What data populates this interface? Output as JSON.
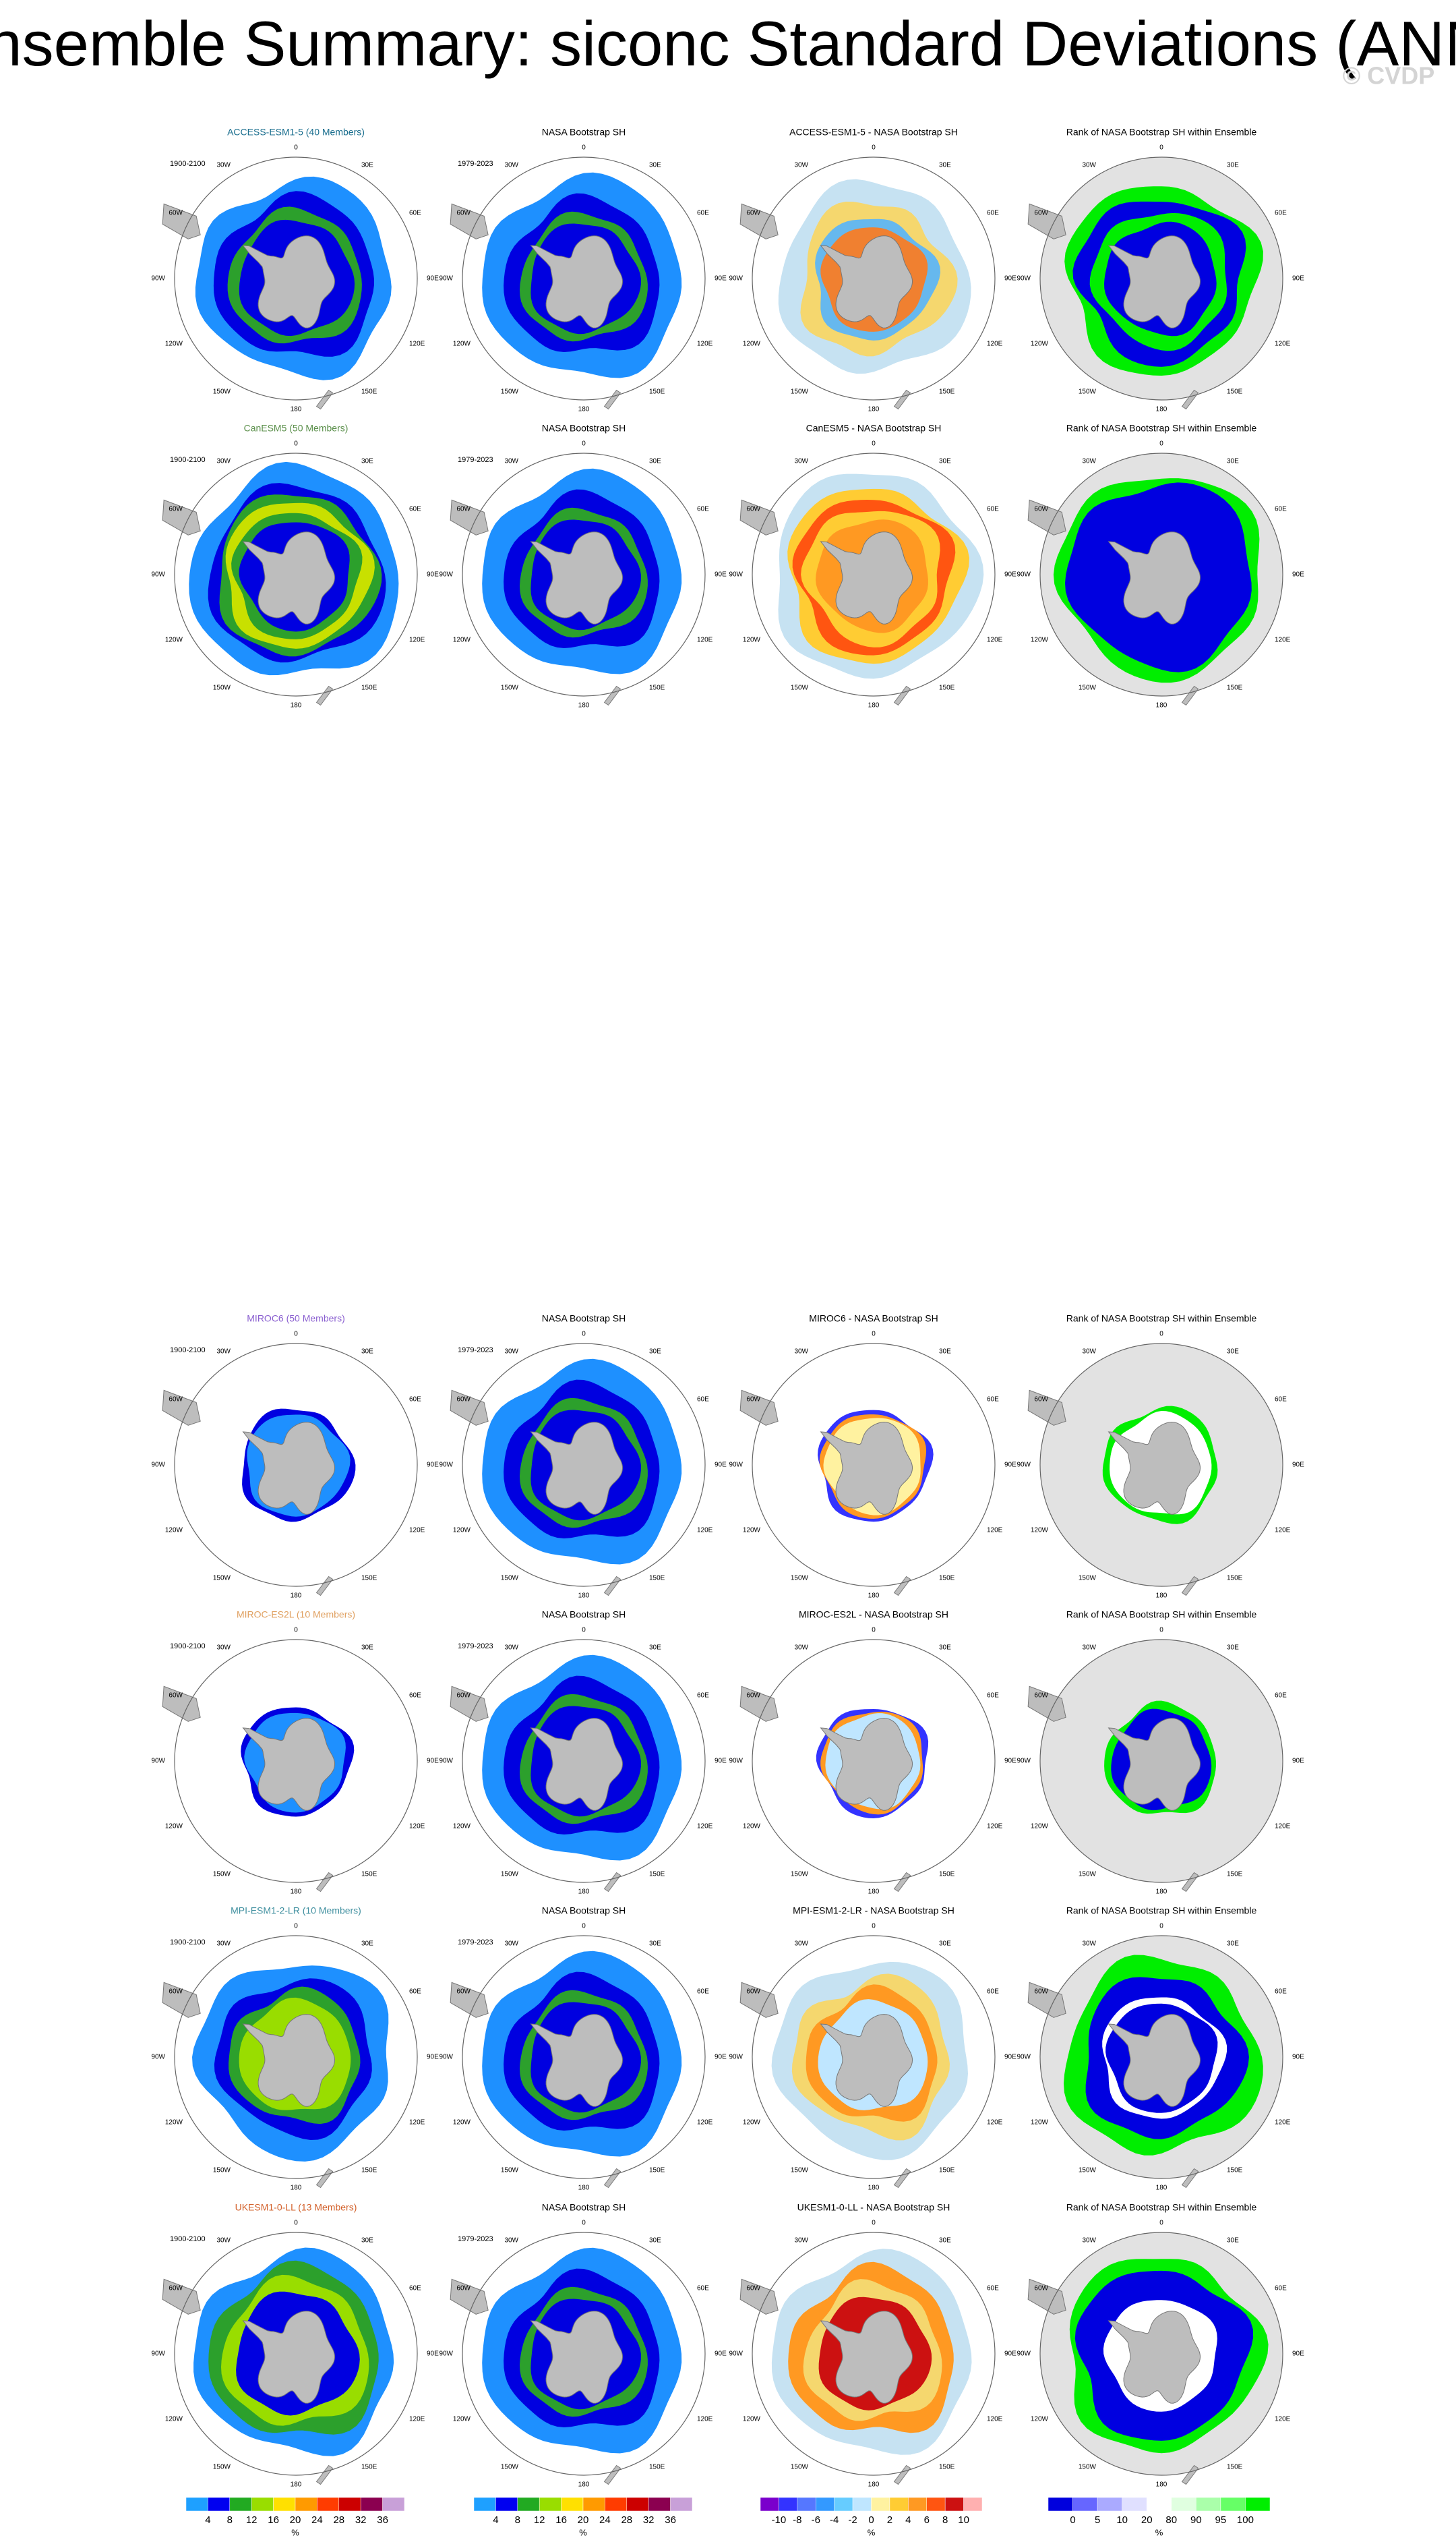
{
  "header": {
    "title": "Ensemble Summary: siconc Standard Deviations (ANN)",
    "watermark": "© CVDP"
  },
  "obs_title": "NASA Bootstrap SH",
  "rank_title": "Rank of NASA Bootstrap SH within Ensemble",
  "model_period": "1900-2100",
  "obs_period": "1979-2023",
  "longitude_labels": [
    "0",
    "30E",
    "60E",
    "90E",
    "120E",
    "150E",
    "180",
    "150W",
    "120W",
    "90W",
    "60W",
    "30W"
  ],
  "rows": [
    {
      "model": "ACCESS-ESM1-5 (40 Members)",
      "color": "#1a6e8e",
      "diff_title": "ACCESS-ESM1-5 - NASA Bootstrap SH"
    },
    {
      "model": "CanESM5 (50 Members)",
      "color": "#5a8f4a",
      "diff_title": "CanESM5 - NASA Bootstrap SH"
    },
    {
      "model": "MIROC6 (50 Members)",
      "color": "#8a5fd0",
      "diff_title": "MIROC6 - NASA Bootstrap SH"
    },
    {
      "model": "MIROC-ES2L (10 Members)",
      "color": "#e0a060",
      "diff_title": "MIROC-ES2L - NASA Bootstrap SH"
    },
    {
      "model": "MPI-ESM1-2-LR (10 Members)",
      "color": "#3f8f9f",
      "diff_title": "MPI-ESM1-2-LR - NASA Bootstrap SH"
    },
    {
      "model": "UKESM1-0-LL (13 Members)",
      "color": "#d2602a",
      "diff_title": "UKESM1-0-LL - NASA Bootstrap SH"
    }
  ],
  "colorbars": [
    {
      "colors": [
        "#1ea0ff",
        "#0000f0",
        "#22aa22",
        "#99dd00",
        "#ffe000",
        "#ff9a00",
        "#ff3c00",
        "#cc0000",
        "#8b0050",
        "#c8a0d8"
      ],
      "labels": [
        "4",
        "8",
        "12",
        "16",
        "20",
        "24",
        "28",
        "32",
        "36"
      ],
      "unit": "%"
    },
    {
      "colors": [
        "#1ea0ff",
        "#0000f0",
        "#22aa22",
        "#99dd00",
        "#ffe000",
        "#ff9a00",
        "#ff3c00",
        "#cc0000",
        "#8b0050",
        "#c8a0d8"
      ],
      "labels": [
        "4",
        "8",
        "12",
        "16",
        "20",
        "24",
        "28",
        "32",
        "36"
      ],
      "unit": "%"
    },
    {
      "colors": [
        "#7a00cc",
        "#3333ff",
        "#5577ff",
        "#3399ff",
        "#66ccff",
        "#bfe6ff",
        "#fff2a0",
        "#ffcc33",
        "#ff9922",
        "#ff5511",
        "#cc1111",
        "#ffb0b0"
      ],
      "labels": [
        "-10",
        "-8",
        "-6",
        "-4",
        "-2",
        "0",
        "2",
        "4",
        "6",
        "8",
        "10"
      ],
      "unit": "%"
    },
    {
      "colors": [
        "#0000dd",
        "#6666ff",
        "#aaaaff",
        "#e0e0ff",
        "#ffffff",
        "#e0ffe0",
        "#aaffaa",
        "#66ff66",
        "#00ee00"
      ],
      "labels": [
        "0",
        "5",
        "10",
        "20",
        "80",
        "90",
        "95",
        "100"
      ],
      "unit": "%"
    }
  ]
}
